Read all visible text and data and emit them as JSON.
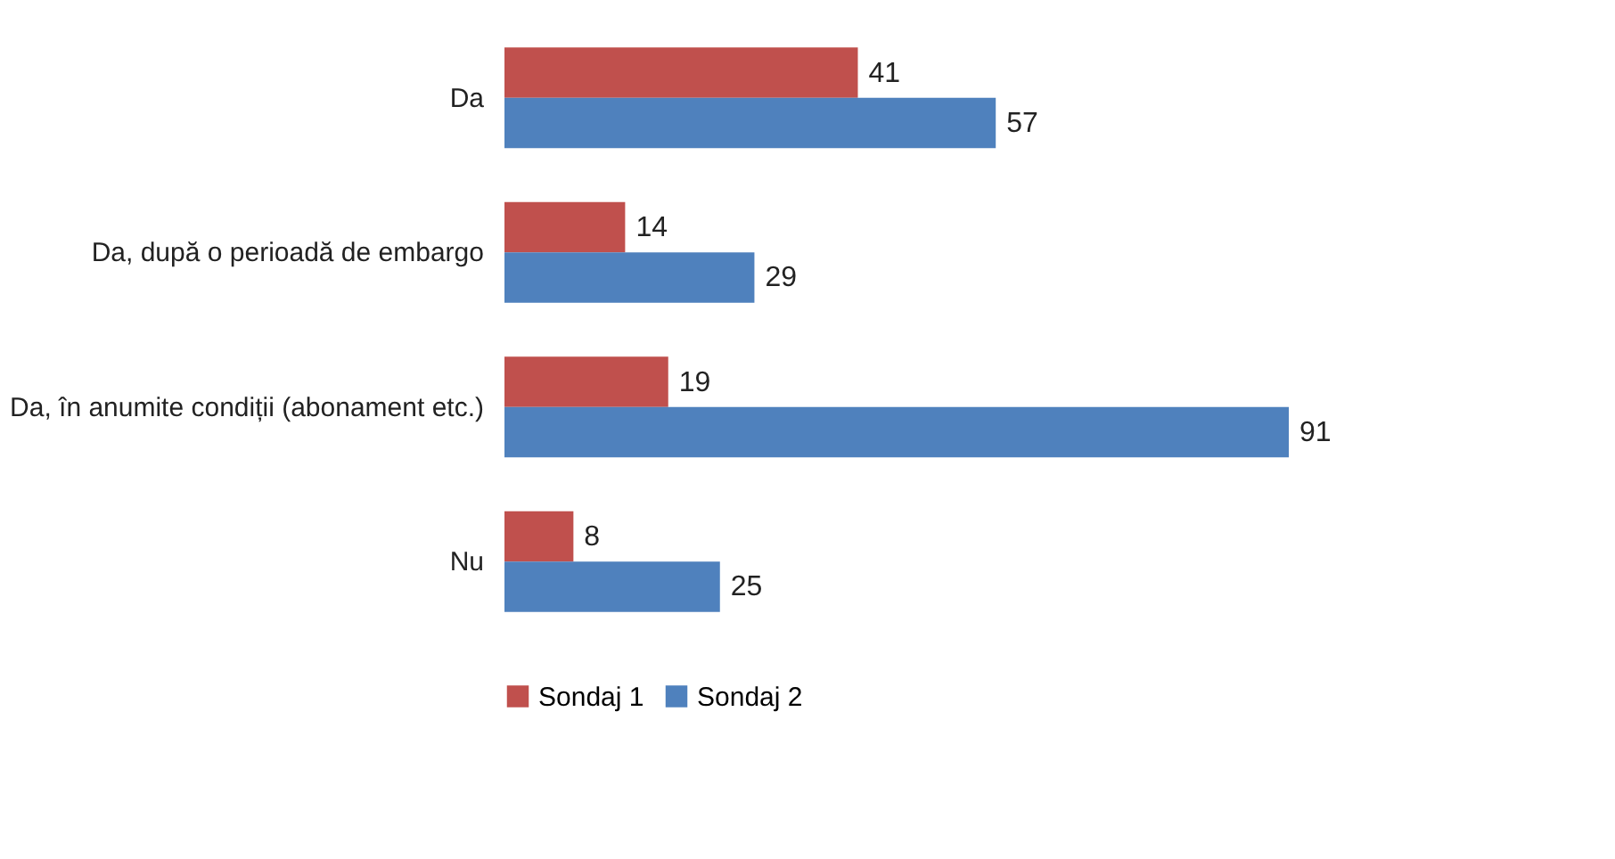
{
  "chart_data": {
    "type": "bar",
    "orientation": "horizontal",
    "categories": [
      "Da",
      "Da, după o perioadă de embargo",
      "Da, în anumite condiții (abonament etc.)",
      "Nu"
    ],
    "series": [
      {
        "name": "Sondaj 1",
        "color": "#c0504d",
        "values": [
          41,
          14,
          19,
          8
        ]
      },
      {
        "name": "Sondaj 2",
        "color": "#4f81bd",
        "values": [
          57,
          29,
          91,
          25
        ]
      }
    ],
    "data_labels": true,
    "legend": "bottom",
    "grid": false,
    "tick_labels": "y"
  }
}
